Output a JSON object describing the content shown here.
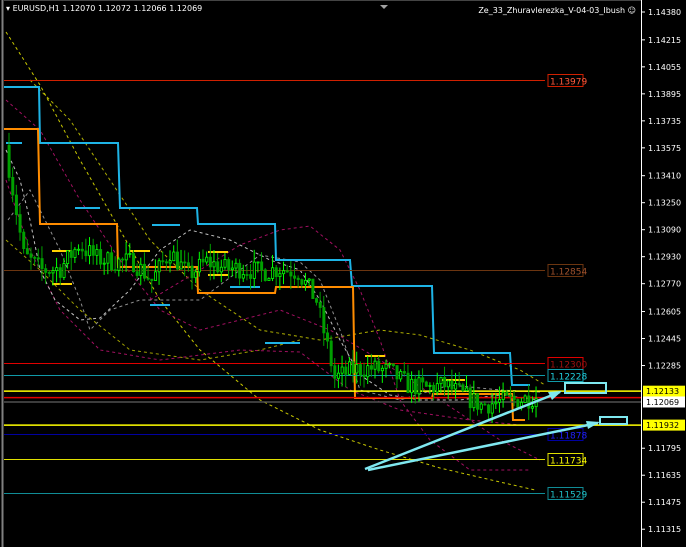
{
  "window": {
    "symbol_title": "EURUSD,H1  1.12070 1.12072 1.12066 1.12069",
    "indicator_name": "Ze_33_Zhuravlerezka_V-04-03_Ibush"
  },
  "colors": {
    "background": "#000000",
    "bull_candle": "#00ff00",
    "bear_candle": "#00a000",
    "step_blue": "#1eb4e6",
    "step_orange": "#ff8c00",
    "arrow": "#7fe8f0"
  },
  "price_axis": {
    "max": 1.1438,
    "ticks": [
      "1.14380",
      "1.14215",
      "1.14055",
      "1.13895",
      "1.13735",
      "1.13575",
      "1.13410",
      "1.13250",
      "1.13090",
      "1.12930",
      "1.12770",
      "1.12605",
      "1.12445",
      "1.12285",
      "1.11795",
      "1.11635",
      "1.11475",
      "1.11315"
    ]
  },
  "axis_markers": [
    {
      "label": "1.12133",
      "price": 1.12133,
      "bg": "#ffff00",
      "fg": "#000000"
    },
    {
      "label": "1.12069",
      "price": 1.12069,
      "bg": "#ffffff",
      "fg": "#000000"
    },
    {
      "label": "1.11932",
      "price": 1.11932,
      "bg": "#ffff00",
      "fg": "#000000"
    }
  ],
  "levels": [
    {
      "label": "1.13979",
      "price": 1.13979,
      "color": "#d02000",
      "text": "#ff5a3c",
      "full": false
    },
    {
      "label": "1.12854",
      "price": 1.12854,
      "color": "#6b3510",
      "text": "#a0522d",
      "full": false
    },
    {
      "label": "1.12300",
      "price": 1.123,
      "color": "#e00000",
      "text": "#a01010",
      "full": false
    },
    {
      "label": "1.12228",
      "price": 1.12228,
      "color": "#109aa8",
      "text": "#20d0e0",
      "full": false
    },
    {
      "label": "1.11878",
      "price": 1.11878,
      "color": "#0000a0",
      "text": "#2020ff",
      "full": false
    },
    {
      "label": "1.11734",
      "price": 1.11734,
      "color": "#e0e000",
      "text": "#ffff00",
      "full": false
    },
    {
      "label": "1.11529",
      "price": 1.11529,
      "color": "#108c96",
      "text": "#20c0c8",
      "full": false
    }
  ],
  "full_lines": [
    {
      "price": 1.12133,
      "color": "#ffff00"
    },
    {
      "price": 1.12095,
      "color": "#e00000"
    },
    {
      "price": 1.12069,
      "color": "#505050"
    },
    {
      "price": 1.11932,
      "color": "#ffff00"
    }
  ],
  "price_path": [
    1.1359,
    1.1294,
    1.1285,
    1.1286,
    1.13,
    1.1292,
    1.129,
    1.129,
    1.1279,
    1.1296,
    1.1282,
    1.129,
    1.1286,
    1.1286,
    1.1284,
    1.1286,
    1.1284,
    1.1267,
    1.1221,
    1.1226,
    1.1227,
    1.1225,
    1.1217,
    1.1215,
    1.1217,
    1.1211,
    1.1205,
    1.1207,
    1.1208,
    1.121
  ]
}
